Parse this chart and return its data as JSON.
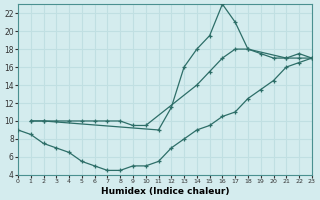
{
  "title": "",
  "xlabel": "Humidex (Indice chaleur)",
  "ylabel": "",
  "bg_color": "#d4ecee",
  "line_color": "#2d6e68",
  "grid_color": "#c0dfe2",
  "ylim": [
    4,
    23
  ],
  "xlim": [
    0,
    23
  ],
  "yticks": [
    4,
    6,
    8,
    10,
    12,
    14,
    16,
    18,
    20,
    22
  ],
  "xticks": [
    0,
    1,
    2,
    3,
    4,
    5,
    6,
    7,
    8,
    9,
    10,
    11,
    12,
    13,
    14,
    15,
    16,
    17,
    18,
    19,
    20,
    21,
    22,
    23
  ],
  "curve1_x": [
    1,
    2,
    11,
    12,
    13,
    14,
    15,
    16,
    17,
    18,
    21,
    22,
    23
  ],
  "curve1_y": [
    10,
    10,
    9,
    11.5,
    16,
    18,
    19.5,
    23,
    21,
    18,
    17,
    17.5,
    17
  ],
  "curve2_x": [
    1,
    2,
    3,
    4,
    5,
    6,
    7,
    8,
    9,
    10,
    14,
    15,
    16,
    17,
    18,
    19,
    20,
    21,
    22,
    23
  ],
  "curve2_y": [
    10,
    10,
    10,
    10,
    10,
    10,
    10,
    10,
    9.5,
    9.5,
    14,
    15.5,
    17,
    18,
    18,
    17.5,
    17,
    17,
    17,
    17
  ],
  "curve3_x": [
    0,
    1,
    2,
    3,
    4,
    5,
    6,
    7,
    8,
    9,
    10,
    11,
    12,
    13,
    14,
    15,
    16,
    17,
    18,
    19,
    20,
    21,
    22,
    23
  ],
  "curve3_y": [
    9,
    8.5,
    7.5,
    7,
    6.5,
    5.5,
    5,
    4.5,
    4.5,
    5,
    5,
    5.5,
    7,
    8,
    9,
    9.5,
    10.5,
    11,
    12.5,
    13.5,
    14.5,
    16,
    16.5,
    17
  ]
}
